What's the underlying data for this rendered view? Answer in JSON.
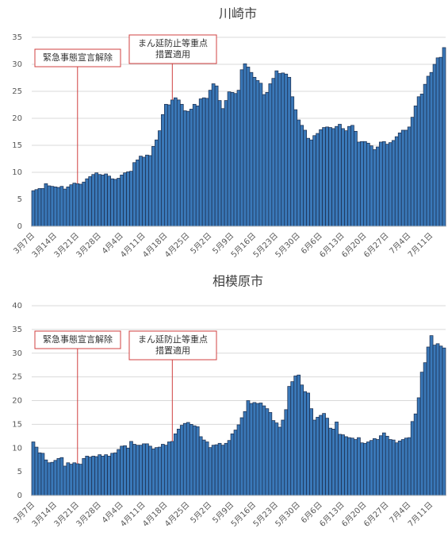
{
  "chart_data": [
    {
      "type": "bar",
      "title": "川崎市",
      "color": "#3a78b8",
      "ylim": [
        0,
        35
      ],
      "yticks": [
        0,
        5,
        10,
        15,
        20,
        25,
        30,
        35
      ],
      "grid": true,
      "annotations": [
        {
          "lines": [
            "緊急事態宣言解除"
          ]
        },
        {
          "lines": [
            "まん延防止等重点",
            "措置適用"
          ]
        }
      ],
      "categories": [
        "3月7日",
        null,
        null,
        null,
        null,
        null,
        null,
        "3月14日",
        null,
        null,
        null,
        null,
        null,
        null,
        "3月21日",
        null,
        null,
        null,
        null,
        null,
        null,
        "3月28日",
        null,
        null,
        null,
        null,
        null,
        null,
        "4月4日",
        null,
        null,
        null,
        null,
        null,
        null,
        "4月11日",
        null,
        null,
        null,
        null,
        null,
        null,
        "4月18日",
        null,
        null,
        null,
        null,
        null,
        null,
        "4月25日",
        null,
        null,
        null,
        null,
        null,
        null,
        "5月2日",
        null,
        null,
        null,
        null,
        null,
        null,
        "5月9日",
        null,
        null,
        null,
        null,
        null,
        null,
        "5月16日",
        null,
        null,
        null,
        null,
        null,
        null,
        "5月23日",
        null,
        null,
        null,
        null,
        null,
        null,
        "5月30日",
        null,
        null,
        null,
        null,
        null,
        null,
        "6月6日",
        null,
        null,
        null,
        null,
        null,
        null,
        "6月13日",
        null,
        null,
        null,
        null,
        null,
        null,
        "6月20日",
        null,
        null,
        null,
        null,
        null,
        null,
        "6月27日",
        null,
        null,
        null,
        null,
        null,
        null,
        "7月4日",
        null,
        null,
        null,
        null,
        null,
        null,
        "7月11日",
        null,
        null,
        null,
        null
      ],
      "values": [
        6.6,
        6.8,
        7,
        7,
        7.9,
        7.5,
        7.4,
        7.3,
        7.2,
        7.4,
        6.9,
        7.3,
        7.7,
        8,
        7.9,
        7.8,
        8.2,
        8.8,
        9.2,
        9.6,
        9.9,
        9.6,
        9.5,
        9.7,
        9.3,
        8.8,
        8.7,
        8.9,
        9.5,
        9.9,
        10.1,
        10.2,
        11.8,
        12.3,
        13,
        12.8,
        13.2,
        13.1,
        14.8,
        16,
        17.7,
        20.7,
        22.6,
        22.5,
        23.4,
        23.8,
        23.4,
        22.6,
        21.4,
        21.3,
        21.7,
        22.6,
        22.3,
        23.6,
        23.8,
        23.7,
        25.2,
        26.4,
        26,
        23.3,
        21.8,
        23.3,
        24.9,
        24.8,
        24.6,
        25.2,
        29,
        30.1,
        29.5,
        28.5,
        27.6,
        27,
        26.5,
        24.4,
        24.8,
        26.4,
        27.4,
        28.8,
        28.3,
        28.4,
        28.2,
        27.6,
        24,
        21.6,
        19.7,
        18.7,
        17.8,
        16.3,
        16,
        16.8,
        17.2,
        17.9,
        18.3,
        18.4,
        18.3,
        18.1,
        18.5,
        18.9,
        18.1,
        17.7,
        18.5,
        18.7,
        17.6,
        15.6,
        15.7,
        15.7,
        15.4,
        14.9,
        14.2,
        14.7,
        15.6,
        15.7,
        15.2,
        15.5,
        15.9,
        16.6,
        17.3,
        17.8,
        17.8,
        18.4,
        20.2,
        22.3,
        24,
        24.5,
        26.3,
        27.8,
        28.5,
        30,
        31.2,
        31.3,
        33.1
      ]
    },
    {
      "type": "bar",
      "title": "相模原市",
      "color": "#3a78b8",
      "ylim": [
        0,
        40
      ],
      "yticks": [
        0,
        5,
        10,
        15,
        20,
        25,
        30,
        35,
        40
      ],
      "grid": true,
      "annotations": [
        {
          "lines": [
            "緊急事態宣言解除"
          ]
        },
        {
          "lines": [
            "まん延防止等重点",
            "措置適用"
          ]
        }
      ],
      "categories": [
        "3月7日",
        null,
        null,
        null,
        null,
        null,
        null,
        "3月14日",
        null,
        null,
        null,
        null,
        null,
        null,
        "3月21日",
        null,
        null,
        null,
        null,
        null,
        null,
        "3月28日",
        null,
        null,
        null,
        null,
        null,
        null,
        "4月4日",
        null,
        null,
        null,
        null,
        null,
        null,
        "4月11日",
        null,
        null,
        null,
        null,
        null,
        null,
        "4月18日",
        null,
        null,
        null,
        null,
        null,
        null,
        "4月25日",
        null,
        null,
        null,
        null,
        null,
        null,
        "5月2日",
        null,
        null,
        null,
        null,
        null,
        null,
        "5月9日",
        null,
        null,
        null,
        null,
        null,
        null,
        "5月16日",
        null,
        null,
        null,
        null,
        null,
        null,
        "5月23日",
        null,
        null,
        null,
        null,
        null,
        null,
        "5月30日",
        null,
        null,
        null,
        null,
        null,
        null,
        "6月6日",
        null,
        null,
        null,
        null,
        null,
        null,
        "6月13日",
        null,
        null,
        null,
        null,
        null,
        null,
        "6月20日",
        null,
        null,
        null,
        null,
        null,
        null,
        "6月27日",
        null,
        null,
        null,
        null,
        null,
        null,
        "7月4日",
        null,
        null,
        null,
        null,
        null,
        null,
        "7月11日",
        null,
        null,
        null,
        null
      ],
      "values": [
        11.3,
        10.2,
        9,
        8.9,
        7.5,
        6.9,
        7,
        7.4,
        7.8,
        8,
        6.2,
        6.9,
        6.6,
        6.9,
        6.7,
        6.6,
        7.8,
        8.3,
        8.1,
        8.3,
        8.2,
        8.6,
        8.3,
        8.6,
        8.3,
        8.9,
        9,
        9.7,
        10.4,
        10.5,
        10,
        11.4,
        10.8,
        10.6,
        10.6,
        10.9,
        10.9,
        10.4,
        9.8,
        10.1,
        10.2,
        10.8,
        10.6,
        11.3,
        11.4,
        13,
        14,
        14.8,
        15.2,
        15.4,
        15,
        14.7,
        14.5,
        12.4,
        11.7,
        11.3,
        10.1,
        10.6,
        10.7,
        11,
        10.6,
        11,
        11.6,
        13,
        13.8,
        14.9,
        16.4,
        17.7,
        20,
        19.4,
        19.6,
        19.4,
        19.5,
        18.9,
        18.3,
        17.5,
        15.8,
        15.3,
        14.4,
        15.9,
        18.1,
        23,
        24,
        25.2,
        25.4,
        23.3,
        21.9,
        21.6,
        18.3,
        15.9,
        16.5,
        16.9,
        17.3,
        16.3,
        14.2,
        14,
        15.5,
        12.9,
        12.8,
        12.4,
        12.2,
        12.1,
        11.8,
        12.2,
        11.1,
        11,
        11.3,
        11.6,
        12,
        11.8,
        12.6,
        13.2,
        12.5,
        11.8,
        11.7,
        11.1,
        11.5,
        11.8,
        12.1,
        12.2,
        15.6,
        17.2,
        20.6,
        26,
        28,
        31.3,
        33.7,
        31.7,
        32,
        31.5,
        31.1
      ]
    }
  ]
}
